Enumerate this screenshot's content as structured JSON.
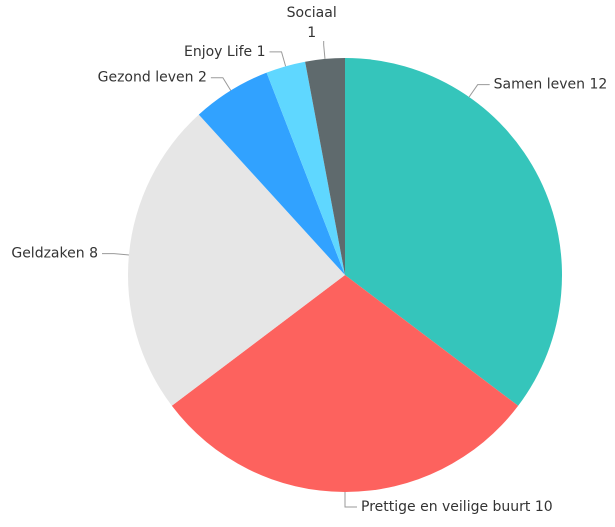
{
  "chart_data": {
    "type": "pie",
    "categories": [
      "Samen leven",
      "Prettige en veilige buurt",
      "Geldzaken",
      "Gezond leven",
      "Enjoy Life",
      "Sociaal"
    ],
    "values": [
      12,
      10,
      8,
      2,
      1,
      1
    ],
    "colors": [
      "#35c5bb",
      "#fd625e",
      "#e6e6e6",
      "#31a2ff",
      "#5fd7ff",
      "#5f6a6d"
    ]
  }
}
